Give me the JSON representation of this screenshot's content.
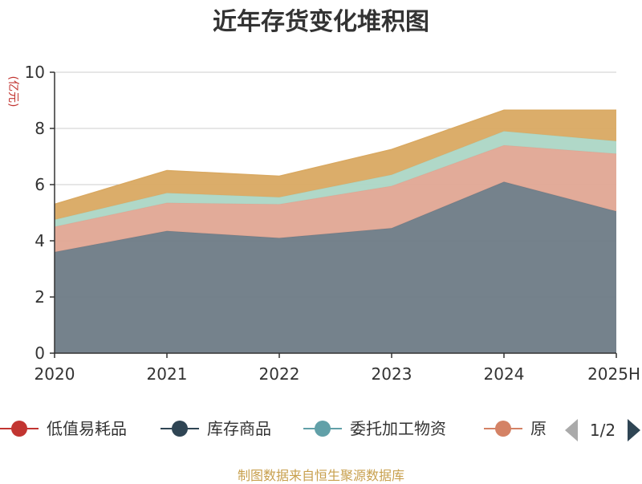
{
  "chart_data": {
    "type": "area",
    "stacked": true,
    "title": "近年存货变化堆积图",
    "ylabel": "(亿元)",
    "xlabel": "",
    "categories": [
      "2020",
      "2021",
      "2022",
      "2023",
      "2024",
      "2025H"
    ],
    "ylim": [
      0,
      10
    ],
    "yticks": [
      0,
      2,
      4,
      6,
      8,
      10
    ],
    "grid": true,
    "series": [
      {
        "name": "库存商品",
        "color": "#6e7b86",
        "values": [
          3.6,
          4.35,
          4.1,
          4.45,
          6.1,
          5.05
        ]
      },
      {
        "name": "原材料",
        "color": "#e0a693",
        "values": [
          0.9,
          1.0,
          1.2,
          1.5,
          1.3,
          2.05
        ]
      },
      {
        "name": "委托加工物资",
        "color": "#acd6c5",
        "values": [
          0.25,
          0.35,
          0.25,
          0.4,
          0.5,
          0.45
        ]
      },
      {
        "name": "",
        "color": "#d9a962",
        "values": [
          0.55,
          0.8,
          0.75,
          0.9,
          0.75,
          1.1
        ]
      }
    ],
    "legend": {
      "position": "bottom",
      "items": [
        {
          "label": "低值易耗品",
          "color": "#c23531"
        },
        {
          "label": "库存商品",
          "color": "#2f4554"
        },
        {
          "label": "委托加工物资",
          "color": "#61a0a8"
        },
        {
          "label": "原",
          "color": "#d48265"
        }
      ],
      "page": "1/2"
    }
  },
  "source": "制图数据来自恒生聚源数据库"
}
